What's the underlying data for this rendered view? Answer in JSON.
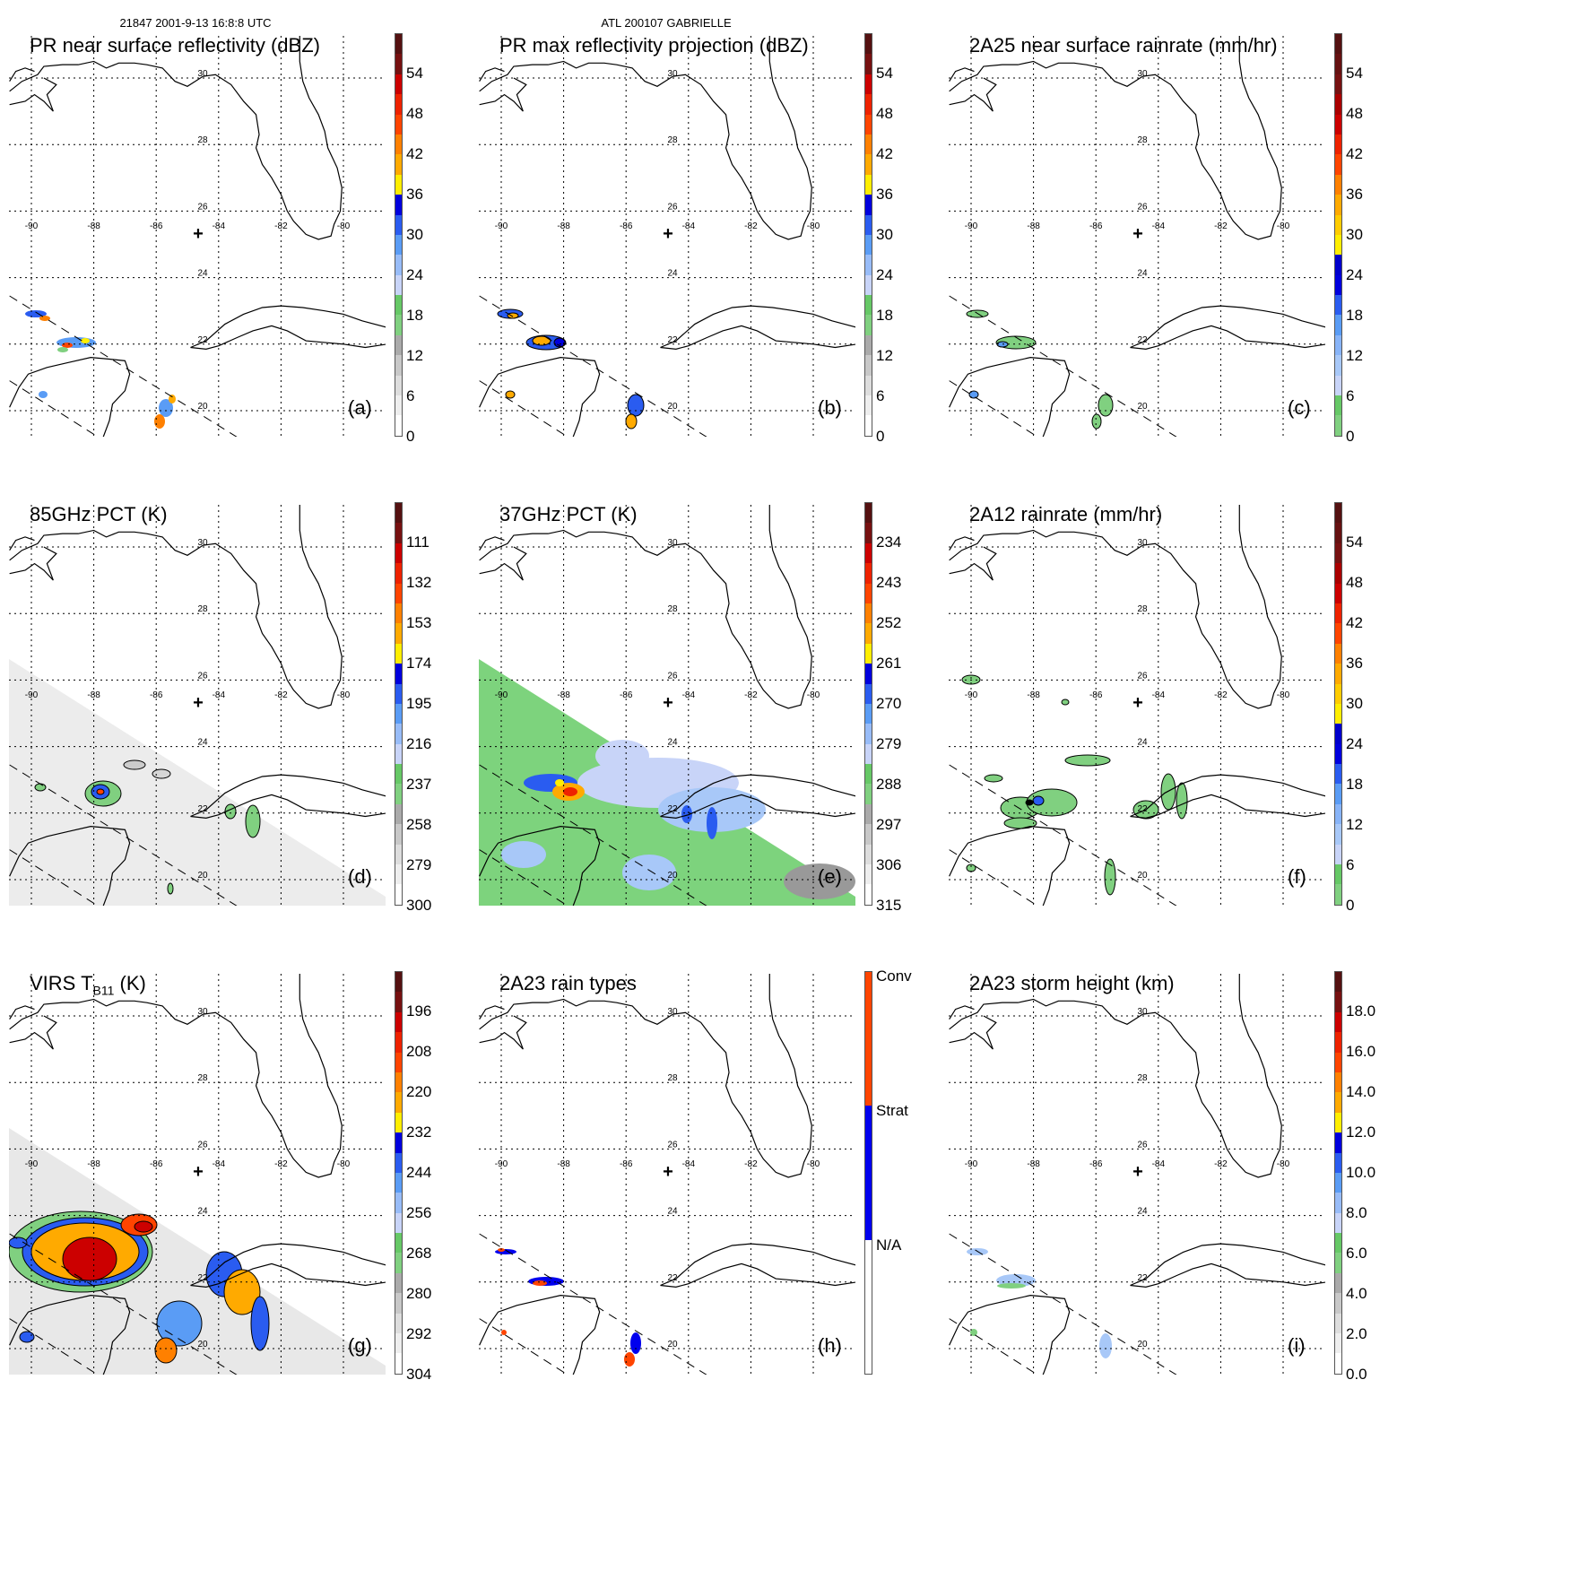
{
  "header": {
    "left": "21847 2001-9-13 16:8:8 UTC",
    "center": "ATL 200107 GABRIELLE"
  },
  "grid": {
    "lon_labels": [
      "-90",
      "-88",
      "-86",
      "-84",
      "-82",
      "-80"
    ],
    "lat_labels": [
      "30",
      "28",
      "26",
      "24",
      "22",
      "20"
    ]
  },
  "palettes": {
    "gray_first": [
      "#ffffff",
      "#eeeeee",
      "#dddddd",
      "#c8c8c8",
      "#aaaaaa",
      "#80d080",
      "#66c866",
      "#c8d4f8",
      "#98bcf8",
      "#5a9cf5",
      "#2a5cf0",
      "#0000dd",
      "#ffee00",
      "#ffaa00",
      "#ff8000",
      "#ff4400",
      "#ee2200",
      "#cc0000",
      "#771111",
      "#551111"
    ],
    "green_first": [
      "#80d080",
      "#66c866",
      "#c8d4f8",
      "#a8c8f8",
      "#88b4f8",
      "#5a9cf5",
      "#2a5cf0",
      "#0000dd",
      "#0000cc",
      "#ffee00",
      "#ffcc00",
      "#ffaa00",
      "#ff8000",
      "#ff4400",
      "#ee2200",
      "#cc0000",
      "#aa0000",
      "#771111",
      "#661111",
      "#551111"
    ],
    "rain_types": [
      "#ffffff",
      "#0000ee",
      "#ff4400"
    ]
  },
  "panels": [
    {
      "title": "PR near surface reflectivity (dBZ)",
      "letter": "(a)",
      "palette": "gray_first",
      "ticks": [
        "54",
        "48",
        "42",
        "36",
        "30",
        "24",
        "18",
        "12",
        "6",
        "0"
      ]
    },
    {
      "title": "PR max reflectivity projection (dBZ)",
      "letter": "(b)",
      "palette": "gray_first",
      "ticks": [
        "54",
        "48",
        "42",
        "36",
        "30",
        "24",
        "18",
        "12",
        "6",
        "0"
      ]
    },
    {
      "title": "2A25 near surface rainrate (mm/hr)",
      "letter": "(c)",
      "palette": "green_first",
      "ticks": [
        "54",
        "48",
        "42",
        "36",
        "30",
        "24",
        "18",
        "12",
        "6",
        "0"
      ]
    },
    {
      "title": "85GHz PCT (K)",
      "letter": "(d)",
      "palette": "gray_first",
      "ticks": [
        "111",
        "132",
        "153",
        "174",
        "195",
        "216",
        "237",
        "258",
        "279",
        "300"
      ]
    },
    {
      "title": "37GHz PCT (K)",
      "letter": "(e)",
      "palette": "gray_first",
      "ticks": [
        "234",
        "243",
        "252",
        "261",
        "270",
        "279",
        "288",
        "297",
        "306",
        "315"
      ]
    },
    {
      "title": "2A12 rainrate (mm/hr)",
      "letter": "(f)",
      "palette": "green_first",
      "ticks": [
        "54",
        "48",
        "42",
        "36",
        "30",
        "24",
        "18",
        "12",
        "6",
        "0"
      ]
    },
    {
      "title": "VIRS T",
      "title_sub": "B11",
      "title_tail": " (K)",
      "letter": "(g)",
      "palette": "gray_first",
      "ticks": [
        "196",
        "208",
        "220",
        "232",
        "244",
        "256",
        "268",
        "280",
        "292",
        "304"
      ]
    },
    {
      "title": "2A23 rain types",
      "letter": "(h)",
      "palette": "rain_types",
      "ticks": [
        "Conv",
        "Strat",
        "N/A"
      ]
    },
    {
      "title": "2A23 storm height (km)",
      "letter": "(i)",
      "palette": "gray_first",
      "ticks": [
        "18.0",
        "16.0",
        "14.0",
        "12.0",
        "10.0",
        "8.0",
        "6.0",
        "4.0",
        "2.0",
        "0.0"
      ]
    }
  ]
}
